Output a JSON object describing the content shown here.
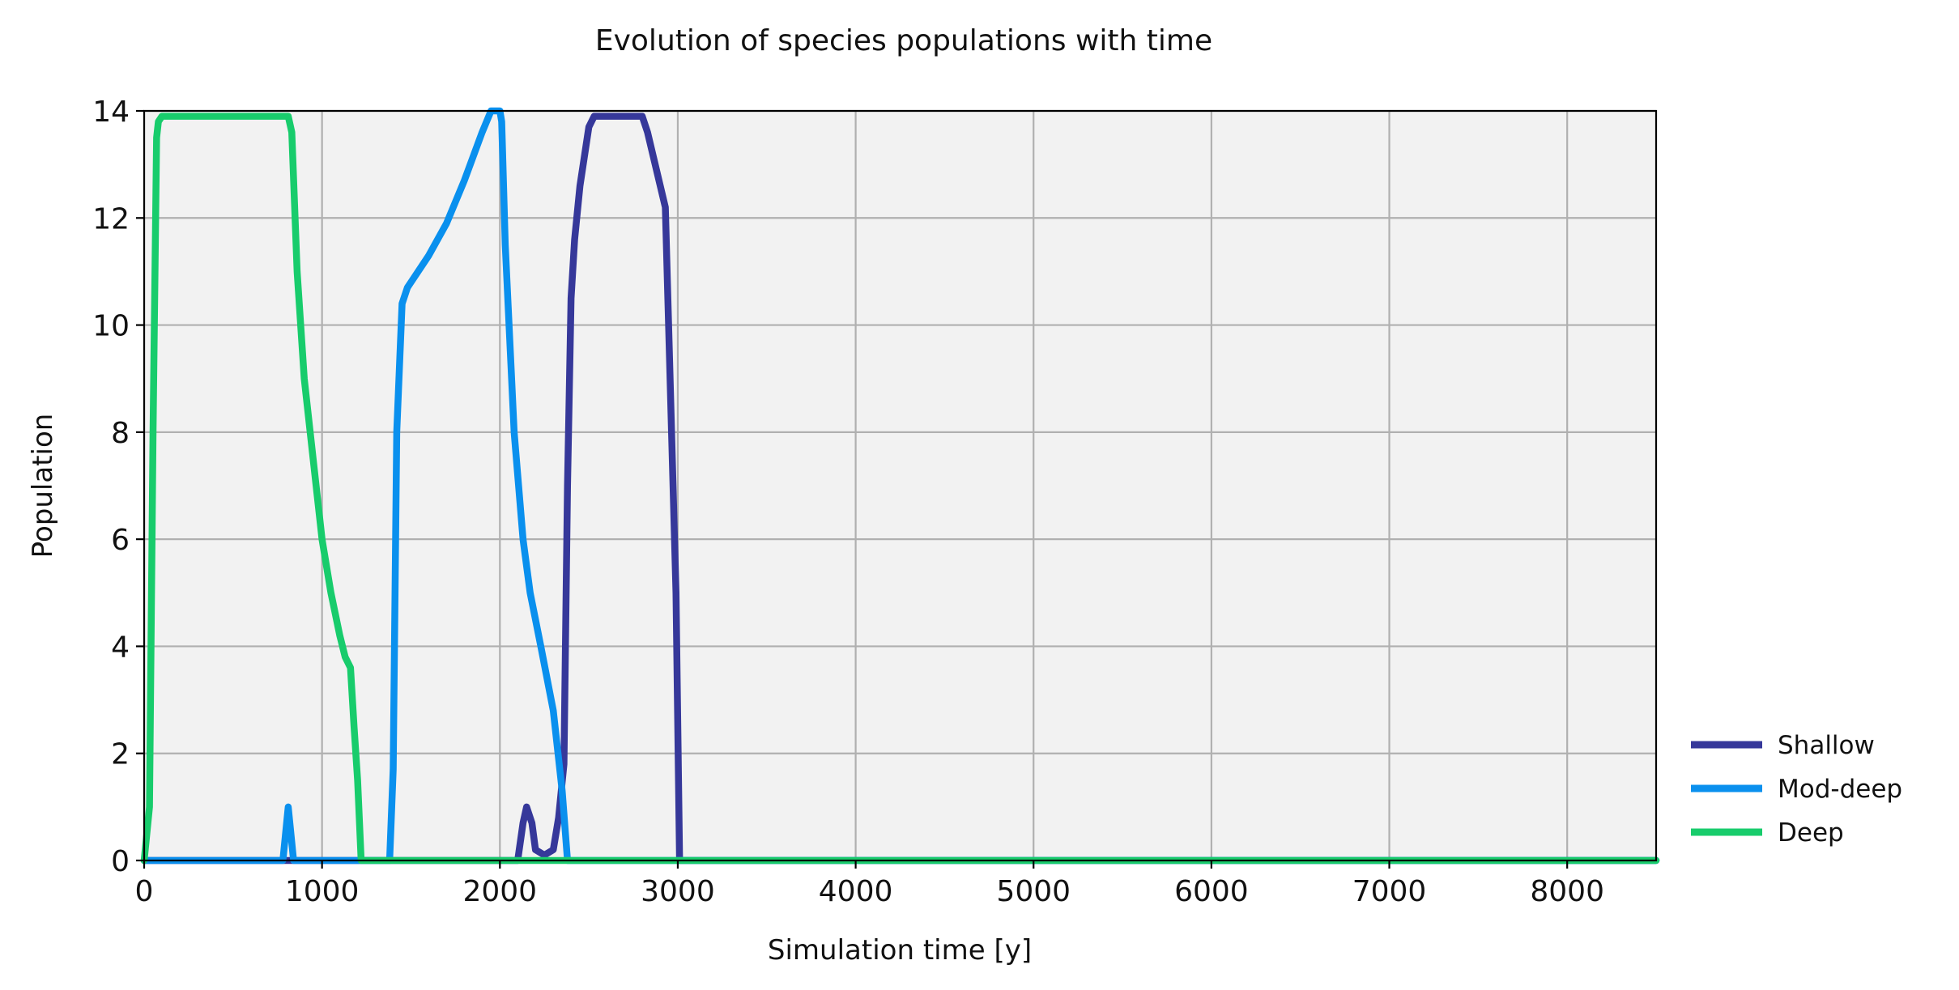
{
  "chart_data": {
    "type": "line",
    "title": "Evolution of species populations with time",
    "xlabel": "Simulation time [y]",
    "ylabel": "Population",
    "xlim": [
      0,
      8500
    ],
    "ylim": [
      0,
      14
    ],
    "xticks": [
      0,
      1000,
      2000,
      3000,
      4000,
      5000,
      6000,
      7000,
      8000
    ],
    "yticks": [
      0,
      2,
      4,
      6,
      8,
      10,
      12,
      14
    ],
    "grid": true,
    "legend_position": "bottom-right-outside",
    "plot_background": "#f2f2f2",
    "grid_color": "#b0b0b0",
    "series": [
      {
        "name": "Shallow",
        "color": "#36389a",
        "x": [
          0,
          2100,
          2130,
          2150,
          2180,
          2200,
          2250,
          2300,
          2330,
          2360,
          2380,
          2400,
          2420,
          2450,
          2500,
          2530,
          2560,
          2800,
          2830,
          2930,
          2990,
          3010,
          3020,
          3050,
          8500
        ],
        "y": [
          0,
          0,
          0.7,
          1.0,
          0.7,
          0.2,
          0.1,
          0.2,
          0.8,
          1.8,
          7.0,
          10.5,
          11.6,
          12.6,
          13.7,
          13.9,
          13.9,
          13.9,
          13.6,
          12.2,
          5.0,
          0.0,
          0.0,
          0.0,
          0.0
        ]
      },
      {
        "name": "Mod-deep",
        "color": "#0a90ee",
        "x": [
          0,
          780,
          810,
          840,
          870,
          1350,
          1380,
          1400,
          1420,
          1450,
          1480,
          1520,
          1600,
          1700,
          1800,
          1900,
          1950,
          2000,
          2010,
          2030,
          2080,
          2130,
          2170,
          2230,
          2300,
          2350,
          2380,
          2400,
          8500
        ],
        "y": [
          0,
          0,
          1.0,
          0.0,
          0.0,
          0.0,
          0.0,
          1.7,
          8.0,
          10.4,
          10.7,
          10.9,
          11.3,
          11.9,
          12.7,
          13.6,
          14.0,
          14.0,
          13.8,
          11.5,
          8.0,
          6.0,
          5.0,
          4.0,
          2.8,
          1.3,
          0.0,
          0.0,
          0.0
        ]
      },
      {
        "name": "Deep",
        "color": "#18cc6c",
        "x": [
          0,
          30,
          50,
          70,
          80,
          100,
          780,
          810,
          830,
          860,
          900,
          950,
          1000,
          1050,
          1100,
          1130,
          1160,
          1180,
          1200,
          1220,
          1250,
          8500
        ],
        "y": [
          0,
          1.0,
          8.0,
          13.5,
          13.8,
          13.9,
          13.9,
          13.9,
          13.6,
          11.0,
          9.0,
          7.5,
          6.0,
          5.0,
          4.2,
          3.8,
          3.6,
          2.5,
          1.5,
          0.0,
          0.0,
          0.0
        ]
      }
    ]
  }
}
